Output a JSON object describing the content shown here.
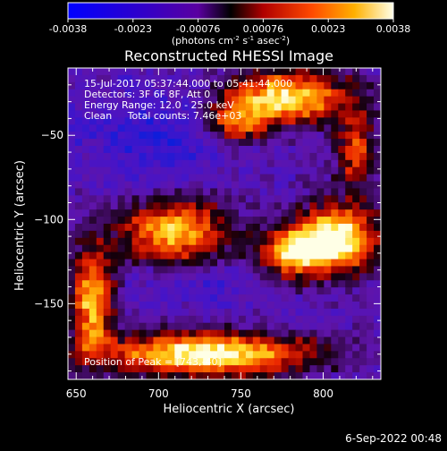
{
  "colorbar": {
    "tick_labels": [
      "-0.0038",
      "-0.0023",
      "-0.00076",
      "0.00076",
      "0.0023",
      "0.0038"
    ],
    "range": [
      -0.0038,
      0.0038
    ],
    "unit_text": {
      "prefix": "(photons cm",
      "exp1": "-2",
      "mid1": " s",
      "exp2": "-1",
      "mid2": " asec",
      "exp3": "-2",
      "suffix": ")"
    }
  },
  "chart_data": {
    "type": "heatmap",
    "title": "Reconstructed RHESSI Image",
    "xlabel": "Heliocentric X (arcsec)",
    "ylabel": "Heliocentric Y (arcsec)",
    "xlim": [
      645,
      835
    ],
    "ylim": [
      -195,
      -10
    ],
    "xticks": [
      650,
      700,
      750,
      800
    ],
    "yticks": [
      -50,
      -100,
      -150
    ],
    "xtick_labels": [
      "650",
      "700",
      "750",
      "800"
    ],
    "ytick_labels": [
      "−50",
      "−100",
      "−150"
    ],
    "colormap": "rainbow (blue-purple-red-orange-yellow-white)",
    "annotations": [
      "15-Jul-2017 05:37:44.000 to 05:41:44.000",
      "Detectors: 3F 6F 8F, Att 0",
      "Energy Range: 12.0 - 25.0 keV",
      "Clean     Total counts: 7.46e+03"
    ],
    "peak_label": "Position of Peak = [743,-40]",
    "peak": [
      743,
      -40
    ],
    "bright_regions": [
      {
        "x": 777,
        "y": -28,
        "sx": 28,
        "sy": 11,
        "amp": 0.9
      },
      {
        "x": 747,
        "y": -44,
        "sx": 12,
        "sy": 8,
        "amp": 0.55
      },
      {
        "x": 808,
        "y": -112,
        "sx": 18,
        "sy": 14,
        "amp": 1.0
      },
      {
        "x": 780,
        "y": -120,
        "sx": 14,
        "sy": 10,
        "amp": 0.7
      },
      {
        "x": 710,
        "y": -108,
        "sx": 24,
        "sy": 14,
        "amp": 0.8
      },
      {
        "x": 660,
        "y": -148,
        "sx": 9,
        "sy": 22,
        "amp": 0.8
      },
      {
        "x": 730,
        "y": -180,
        "sx": 45,
        "sy": 9,
        "amp": 0.95
      },
      {
        "x": 820,
        "y": -60,
        "sx": 9,
        "sy": 15,
        "amp": 0.55
      }
    ],
    "dark_regions": [
      {
        "x": 700,
        "y": -50,
        "sx": 32,
        "sy": 20,
        "amp": 0.6
      },
      {
        "x": 720,
        "y": -135,
        "sx": 30,
        "sy": 12,
        "amp": 0.4
      }
    ]
  },
  "footer": {
    "date": "6-Sep-2022 00:48"
  }
}
